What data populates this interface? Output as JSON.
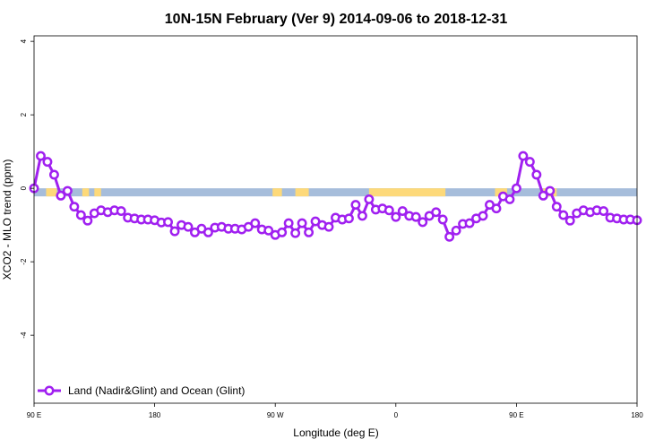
{
  "chart_data": {
    "type": "line",
    "title": "10N-15N February (Ver 9)   2014-09-06 to 2018-12-31",
    "xlabel": "Longitude (deg E)",
    "ylabel": "XCO2 - MLO trend (ppm)",
    "x_ticks": [
      {
        "value": 90,
        "label": "90 E"
      },
      {
        "value": 180,
        "label": "180"
      },
      {
        "value": 270,
        "label": "90 W"
      },
      {
        "value": 360,
        "label": "0"
      },
      {
        "value": 450,
        "label": "90 E"
      },
      {
        "value": 540,
        "label": "180"
      }
    ],
    "y_ticks": [
      {
        "value": -4,
        "label": "-4"
      },
      {
        "value": -2,
        "label": "-2"
      },
      {
        "value": 0,
        "label": "0"
      },
      {
        "value": 2,
        "label": "2"
      },
      {
        "value": 4,
        "label": "4"
      }
    ],
    "xlim": [
      90,
      540
    ],
    "ylim": [
      -5.85,
      4.15
    ],
    "grid": false,
    "legend": {
      "position": "bottom-left"
    },
    "colors": {
      "series": "#a020f0",
      "ocean_band": "#a6bddb",
      "land_band": "#fdd97a"
    },
    "band": {
      "ymin": -0.22,
      "ymax": 0.0,
      "land_segments": [
        [
          99,
          107
        ],
        [
          126,
          131
        ],
        [
          135,
          140
        ],
        [
          268,
          275
        ],
        [
          285,
          295
        ],
        [
          340,
          397
        ],
        [
          434,
          443
        ],
        [
          470,
          480
        ]
      ]
    },
    "series": [
      {
        "name": "Land (Nadir&Glint) and Ocean (Glint)",
        "x": [
          90,
          95,
          100,
          105,
          110,
          115,
          120,
          125,
          130,
          135,
          140,
          145,
          150,
          155,
          160,
          165,
          170,
          175,
          180,
          185,
          190,
          195,
          200,
          205,
          210,
          215,
          220,
          225,
          230,
          235,
          240,
          245,
          250,
          255,
          260,
          265,
          270,
          275,
          280,
          285,
          290,
          295,
          300,
          305,
          310,
          315,
          320,
          325,
          330,
          335,
          340,
          345,
          350,
          355,
          360,
          365,
          370,
          375,
          380,
          385,
          390,
          395,
          400,
          405,
          410,
          415,
          420,
          425,
          430,
          435,
          440,
          445,
          450,
          455,
          460,
          465,
          470,
          475,
          480,
          485,
          490,
          495,
          500,
          505,
          510,
          515,
          520,
          525,
          530,
          535,
          540
        ],
        "y": [
          0.0,
          0.88,
          0.72,
          0.37,
          -0.2,
          -0.07,
          -0.5,
          -0.73,
          -0.88,
          -0.68,
          -0.6,
          -0.65,
          -0.6,
          -0.62,
          -0.8,
          -0.82,
          -0.85,
          -0.85,
          -0.87,
          -0.93,
          -0.92,
          -1.17,
          -1.0,
          -1.05,
          -1.2,
          -1.1,
          -1.2,
          -1.07,
          -1.05,
          -1.1,
          -1.1,
          -1.12,
          -1.05,
          -0.95,
          -1.12,
          -1.15,
          -1.27,
          -1.2,
          -0.95,
          -1.22,
          -0.95,
          -1.2,
          -0.9,
          -1.0,
          -1.05,
          -0.8,
          -0.85,
          -0.82,
          -0.45,
          -0.75,
          -0.3,
          -0.58,
          -0.55,
          -0.6,
          -0.78,
          -0.62,
          -0.75,
          -0.78,
          -0.92,
          -0.75,
          -0.65,
          -0.85,
          -1.32,
          -1.15,
          -0.97,
          -0.95,
          -0.82,
          -0.75,
          -0.45,
          -0.55,
          -0.22,
          -0.3,
          0.0,
          0.88,
          0.72,
          0.37,
          -0.2,
          -0.07,
          -0.5,
          -0.73,
          -0.88,
          -0.68,
          -0.6,
          -0.65,
          -0.6,
          -0.62,
          -0.8,
          -0.82,
          -0.85,
          -0.85,
          -0.87
        ]
      }
    ]
  }
}
